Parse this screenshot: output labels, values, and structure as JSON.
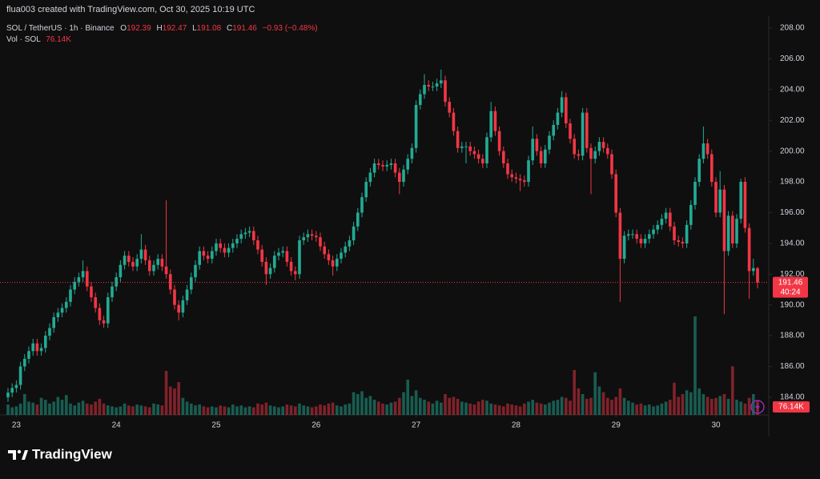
{
  "header": {
    "credit": "flua003 created with TradingView.com, Oct 30, 2025 10:19 UTC"
  },
  "legend": {
    "symbol": "SOL / TetherUS · 1h · Binance",
    "o_label": "O",
    "h_label": "H",
    "l_label": "L",
    "c_label": "C",
    "change": "−0.93 (−0.48%)",
    "volume_name": "Vol · SOL"
  },
  "chart_data": {
    "type": "candlestick",
    "open": [
      184.0,
      184.3,
      184.6,
      184.8,
      186.0,
      186.5,
      187.0,
      187.5,
      187.0,
      187.2,
      188.0,
      188.5,
      189.2,
      189.5,
      189.8,
      190.2,
      191.0,
      191.5,
      191.8,
      192.2,
      191.2,
      190.5,
      189.8,
      189.0,
      188.8,
      190.5,
      191.2,
      191.8,
      192.6,
      193.2,
      192.8,
      192.5,
      193.0,
      193.6,
      192.9,
      192.2,
      192.6,
      193.0,
      192.5,
      192.0,
      191.0,
      190.0,
      189.5,
      190.3,
      191.0,
      191.8,
      192.6,
      193.5,
      193.2,
      193.0,
      193.5,
      194.0,
      193.7,
      193.4,
      193.7,
      194.0,
      194.3,
      194.6,
      194.7,
      194.8,
      194.2,
      193.6,
      192.8,
      192.0,
      192.4,
      193.2,
      193.4,
      193.5,
      192.8,
      192.2,
      192.0,
      194.2,
      194.4,
      194.6,
      194.5,
      194.4,
      193.8,
      193.3,
      192.9,
      192.5,
      193.0,
      193.4,
      193.8,
      194.2,
      195.1,
      196.0,
      197.0,
      198.0,
      198.6,
      199.2,
      199.1,
      199.0,
      199.1,
      199.2,
      198.6,
      198.0,
      198.8,
      199.5,
      200.2,
      203.0,
      203.7,
      204.3,
      204.2,
      204.2,
      204.4,
      204.6,
      203.2,
      202.5,
      201.3,
      200.2,
      200.3,
      200.3,
      200.0,
      199.8,
      199.5,
      199.2,
      200.9,
      202.6,
      201.3,
      200.0,
      199.2,
      198.5,
      198.3,
      198.2,
      198.1,
      198.0,
      199.4,
      200.8,
      200.0,
      199.2,
      200.1,
      201.0,
      201.7,
      202.5,
      203.5,
      201.8,
      200.8,
      199.8,
      199.7,
      202.5,
      200.2,
      199.5,
      200.0,
      200.6,
      200.2,
      199.8,
      198.5,
      196.0,
      193.0,
      194.5,
      194.6,
      194.6,
      194.3,
      194.0,
      194.3,
      194.6,
      194.9,
      195.2,
      195.6,
      196.0,
      195.1,
      194.2,
      194.1,
      194.0,
      195.2,
      196.5,
      198.0,
      199.5,
      200.5,
      199.8,
      198.0,
      196.0,
      197.5,
      193.5,
      195.8,
      194.0,
      195.6,
      198.0,
      195.0,
      192.2,
      192.39
    ],
    "high": [
      184.6,
      184.9,
      185.1,
      186.3,
      186.8,
      187.3,
      187.8,
      187.8,
      187.5,
      188.3,
      188.8,
      189.5,
      189.8,
      190.1,
      190.5,
      191.3,
      191.8,
      192.1,
      192.9,
      192.5,
      191.5,
      190.8,
      190.1,
      189.3,
      190.8,
      191.5,
      192.1,
      192.9,
      193.5,
      193.5,
      193.1,
      193.3,
      194.6,
      193.9,
      193.2,
      192.9,
      193.3,
      193.3,
      196.8,
      192.3,
      191.3,
      190.3,
      190.6,
      191.3,
      192.1,
      192.9,
      193.8,
      193.8,
      193.5,
      193.8,
      194.3,
      194.3,
      194.0,
      194.0,
      194.3,
      194.6,
      194.9,
      195.0,
      195.1,
      195.1,
      194.5,
      193.9,
      193.1,
      192.7,
      193.5,
      193.7,
      193.8,
      193.8,
      193.1,
      192.5,
      194.5,
      194.7,
      194.9,
      194.9,
      194.8,
      194.7,
      194.1,
      193.6,
      193.2,
      193.3,
      193.7,
      194.1,
      194.5,
      195.4,
      196.3,
      197.3,
      198.3,
      198.9,
      199.5,
      199.5,
      199.4,
      199.4,
      199.5,
      199.5,
      198.9,
      199.1,
      199.8,
      200.5,
      203.3,
      204.0,
      205.0,
      204.6,
      204.5,
      204.7,
      205.3,
      204.9,
      203.5,
      202.8,
      201.6,
      200.6,
      200.6,
      200.6,
      200.3,
      200.1,
      199.8,
      201.2,
      203.2,
      202.9,
      201.6,
      200.3,
      199.5,
      198.8,
      198.6,
      198.5,
      198.4,
      199.7,
      201.6,
      201.1,
      200.3,
      200.4,
      201.3,
      202.0,
      202.8,
      203.9,
      203.8,
      202.1,
      201.1,
      200.1,
      202.8,
      202.8,
      200.5,
      200.3,
      200.9,
      200.9,
      200.5,
      200.1,
      198.8,
      196.3,
      194.8,
      194.9,
      194.9,
      194.9,
      194.6,
      194.6,
      194.9,
      195.2,
      195.5,
      195.9,
      196.3,
      196.3,
      195.4,
      194.5,
      194.4,
      195.5,
      196.8,
      198.3,
      199.8,
      201.6,
      200.8,
      200.1,
      198.3,
      198.7,
      197.8,
      196.1,
      196.1,
      195.9,
      198.2,
      198.3,
      195.3,
      193.0,
      192.47
    ],
    "low": [
      183.7,
      184.0,
      184.3,
      184.5,
      185.7,
      186.2,
      186.7,
      186.7,
      186.7,
      186.9,
      187.7,
      188.2,
      188.9,
      189.2,
      189.5,
      189.9,
      190.7,
      191.2,
      191.5,
      190.9,
      190.2,
      189.5,
      188.7,
      188.5,
      188.5,
      190.2,
      190.9,
      191.5,
      192.3,
      192.5,
      192.2,
      192.2,
      192.7,
      192.6,
      191.9,
      191.9,
      192.3,
      192.2,
      191.7,
      190.7,
      189.7,
      189.0,
      189.2,
      190.0,
      190.7,
      191.5,
      192.3,
      192.9,
      192.7,
      192.7,
      193.2,
      193.4,
      193.1,
      193.1,
      193.4,
      193.7,
      194.0,
      194.3,
      194.4,
      193.9,
      193.3,
      192.5,
      191.3,
      191.7,
      192.1,
      192.9,
      193.1,
      192.5,
      191.9,
      191.6,
      191.7,
      193.9,
      194.1,
      194.2,
      194.1,
      193.5,
      193.0,
      192.6,
      191.9,
      192.2,
      192.7,
      193.1,
      193.5,
      193.9,
      194.8,
      195.7,
      196.7,
      197.7,
      198.3,
      198.8,
      198.7,
      198.7,
      198.8,
      198.3,
      197.2,
      197.7,
      198.5,
      199.2,
      199.9,
      202.7,
      203.4,
      203.9,
      203.9,
      203.9,
      204.1,
      202.9,
      202.2,
      201.0,
      199.9,
      199.9,
      199.2,
      199.7,
      199.5,
      199.2,
      198.9,
      198.9,
      200.6,
      201.0,
      199.7,
      198.9,
      198.2,
      198.0,
      197.9,
      197.4,
      197.7,
      197.7,
      199.1,
      199.7,
      198.9,
      198.9,
      199.8,
      200.7,
      201.4,
      202.2,
      201.5,
      200.5,
      199.5,
      199.4,
      199.4,
      199.9,
      197.2,
      199.2,
      199.7,
      199.9,
      199.5,
      198.2,
      195.7,
      190.2,
      192.7,
      194.2,
      194.3,
      194.0,
      193.7,
      193.7,
      194.0,
      194.3,
      194.6,
      194.9,
      195.3,
      194.8,
      193.9,
      193.8,
      193.7,
      193.7,
      194.9,
      196.2,
      197.7,
      199.2,
      199.5,
      197.7,
      195.7,
      195.7,
      189.4,
      193.2,
      193.7,
      193.7,
      195.3,
      194.7,
      190.4,
      191.9,
      191.08
    ],
    "close": [
      184.3,
      184.6,
      184.8,
      186.0,
      186.5,
      187.0,
      187.5,
      187.0,
      187.2,
      188.0,
      188.5,
      189.2,
      189.5,
      189.8,
      190.2,
      191.0,
      191.5,
      191.8,
      192.2,
      191.2,
      190.5,
      189.8,
      189.0,
      188.8,
      190.5,
      191.2,
      191.8,
      192.6,
      193.2,
      192.8,
      192.5,
      193.0,
      193.6,
      192.9,
      192.2,
      192.6,
      193.0,
      192.5,
      192.0,
      191.0,
      190.0,
      189.5,
      190.3,
      191.0,
      191.8,
      192.6,
      193.5,
      193.2,
      193.0,
      193.5,
      194.0,
      193.7,
      193.4,
      193.7,
      194.0,
      194.3,
      194.6,
      194.7,
      194.8,
      194.2,
      193.6,
      192.8,
      192.0,
      192.4,
      193.2,
      193.4,
      193.5,
      192.8,
      192.2,
      192.0,
      194.2,
      194.4,
      194.6,
      194.5,
      194.4,
      193.8,
      193.3,
      192.9,
      192.5,
      193.0,
      193.4,
      193.8,
      194.2,
      195.1,
      196.0,
      197.0,
      198.0,
      198.6,
      199.2,
      199.1,
      199.0,
      199.1,
      199.2,
      198.6,
      198.0,
      198.8,
      199.5,
      200.2,
      203.0,
      203.7,
      204.3,
      204.2,
      204.2,
      204.4,
      204.6,
      203.2,
      202.5,
      201.3,
      200.2,
      200.3,
      200.3,
      200.0,
      199.8,
      199.5,
      199.2,
      200.9,
      202.6,
      201.3,
      200.0,
      199.2,
      198.5,
      198.3,
      198.2,
      198.1,
      198.0,
      199.4,
      200.8,
      200.0,
      199.2,
      200.1,
      201.0,
      201.7,
      202.5,
      203.5,
      201.8,
      200.8,
      199.8,
      199.7,
      202.5,
      200.2,
      199.5,
      200.0,
      200.6,
      200.2,
      199.8,
      198.5,
      196.0,
      193.0,
      194.5,
      194.6,
      194.6,
      194.3,
      194.0,
      194.3,
      194.6,
      194.9,
      195.2,
      195.6,
      196.0,
      195.1,
      194.2,
      194.1,
      194.0,
      195.2,
      196.5,
      198.0,
      199.5,
      200.5,
      199.8,
      198.0,
      196.0,
      197.5,
      193.5,
      195.8,
      194.0,
      195.6,
      198.0,
      195.0,
      192.2,
      192.39,
      191.46
    ],
    "volume": [
      55000,
      40000,
      45000,
      60000,
      110000,
      70000,
      65000,
      55000,
      90000,
      80000,
      60000,
      70000,
      95000,
      80000,
      105000,
      60000,
      50000,
      65000,
      75000,
      60000,
      55000,
      70000,
      85000,
      60000,
      50000,
      45000,
      40000,
      45000,
      60000,
      50000,
      45000,
      55000,
      50000,
      45000,
      40000,
      60000,
      55000,
      50000,
      232000,
      150000,
      140000,
      173000,
      90000,
      70000,
      60000,
      50000,
      55000,
      45000,
      40000,
      45000,
      40000,
      50000,
      45000,
      40000,
      55000,
      45000,
      50000,
      40000,
      45000,
      40000,
      60000,
      55000,
      65000,
      50000,
      45000,
      40000,
      45000,
      55000,
      50000,
      45000,
      60000,
      50000,
      45000,
      40000,
      45000,
      55000,
      50000,
      60000,
      65000,
      50000,
      45000,
      55000,
      60000,
      120000,
      110000,
      125000,
      90000,
      100000,
      80000,
      70000,
      60000,
      55000,
      65000,
      70000,
      90000,
      120000,
      186000,
      100000,
      130000,
      90000,
      80000,
      70000,
      60000,
      75000,
      65000,
      110000,
      90000,
      95000,
      85000,
      70000,
      65000,
      60000,
      55000,
      70000,
      80000,
      75000,
      60000,
      55000,
      50000,
      45000,
      60000,
      55000,
      50000,
      45000,
      60000,
      70000,
      80000,
      65000,
      60000,
      55000,
      65000,
      75000,
      80000,
      95000,
      90000,
      75000,
      237000,
      140000,
      110000,
      85000,
      90000,
      225000,
      150000,
      120000,
      90000,
      80000,
      95000,
      140000,
      90000,
      75000,
      65000,
      55000,
      60000,
      50000,
      55000,
      45000,
      50000,
      60000,
      70000,
      80000,
      170000,
      95000,
      110000,
      130000,
      120000,
      520000,
      140000,
      110000,
      95000,
      85000,
      90000,
      100000,
      110000,
      85000,
      257000,
      80000,
      70000,
      60000,
      90000,
      110000,
      76140
    ],
    "last_volume_label": "76.14K",
    "countdown": "40:24",
    "ylim": [
      182.85,
      208.78
    ],
    "yticks": [
      {
        "value": 184,
        "label": "184.00"
      },
      {
        "value": 186,
        "label": "186.00"
      },
      {
        "value": 188,
        "label": "188.00"
      },
      {
        "value": 190,
        "label": "190.00"
      },
      {
        "value": 192,
        "label": "192.00"
      },
      {
        "value": 194,
        "label": "194.00"
      },
      {
        "value": 196,
        "label": "196.00"
      },
      {
        "value": 198,
        "label": "198.00"
      },
      {
        "value": 200,
        "label": "200.00"
      },
      {
        "value": 202,
        "label": "202.00"
      },
      {
        "value": 204,
        "label": "204.00"
      },
      {
        "value": 206,
        "label": "206.00"
      },
      {
        "value": 208,
        "label": "208.00"
      }
    ],
    "xlim": [
      -1.92,
      182.69
    ],
    "xticks": [
      {
        "value": 2,
        "label": "23"
      },
      {
        "value": 26,
        "label": "24"
      },
      {
        "value": 50,
        "label": "25"
      },
      {
        "value": 74,
        "label": "26"
      },
      {
        "value": 98,
        "label": "27"
      },
      {
        "value": 122,
        "label": "28"
      },
      {
        "value": 146,
        "label": "29"
      },
      {
        "value": 170,
        "label": "30"
      }
    ],
    "grid": false,
    "up_color": "#22ab94",
    "down_color": "#f23645"
  },
  "footer": {
    "brand": "TradingView"
  }
}
